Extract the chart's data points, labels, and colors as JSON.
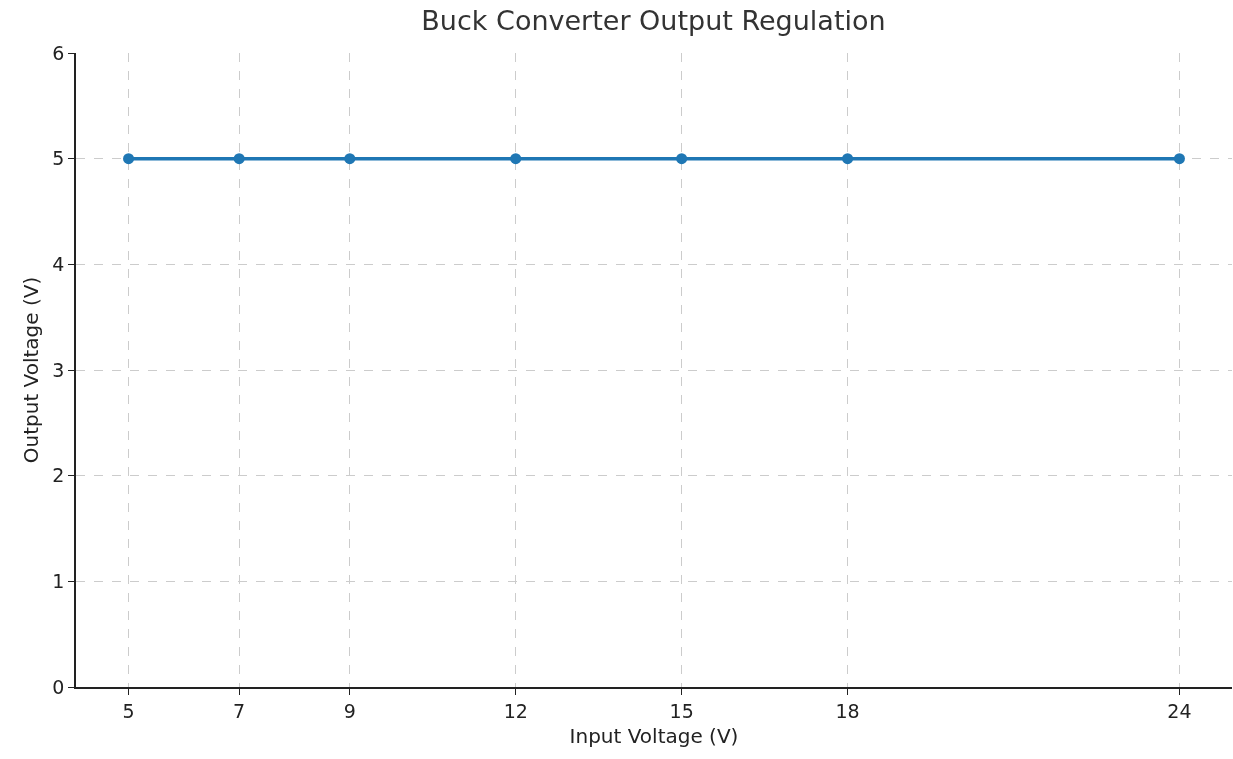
{
  "chart_data": {
    "type": "line",
    "title": "Buck Converter Output Regulation",
    "xlabel": "Input Voltage (V)",
    "ylabel": "Output Voltage (V)",
    "x": [
      5,
      7,
      9,
      12,
      15,
      18,
      24
    ],
    "series": [
      {
        "color": "#1f77b4",
        "values": [
          5,
          5,
          5,
          5,
          5,
          5,
          5
        ]
      }
    ],
    "xlim": [
      4.05,
      24.95
    ],
    "xticks": [
      5,
      7,
      9,
      12,
      15,
      18,
      24
    ],
    "ylim": [
      0,
      6
    ],
    "yticks": [
      0,
      1,
      2,
      3,
      4,
      5,
      6
    ],
    "grid": true,
    "marker": "circle",
    "line_style": "solid"
  }
}
